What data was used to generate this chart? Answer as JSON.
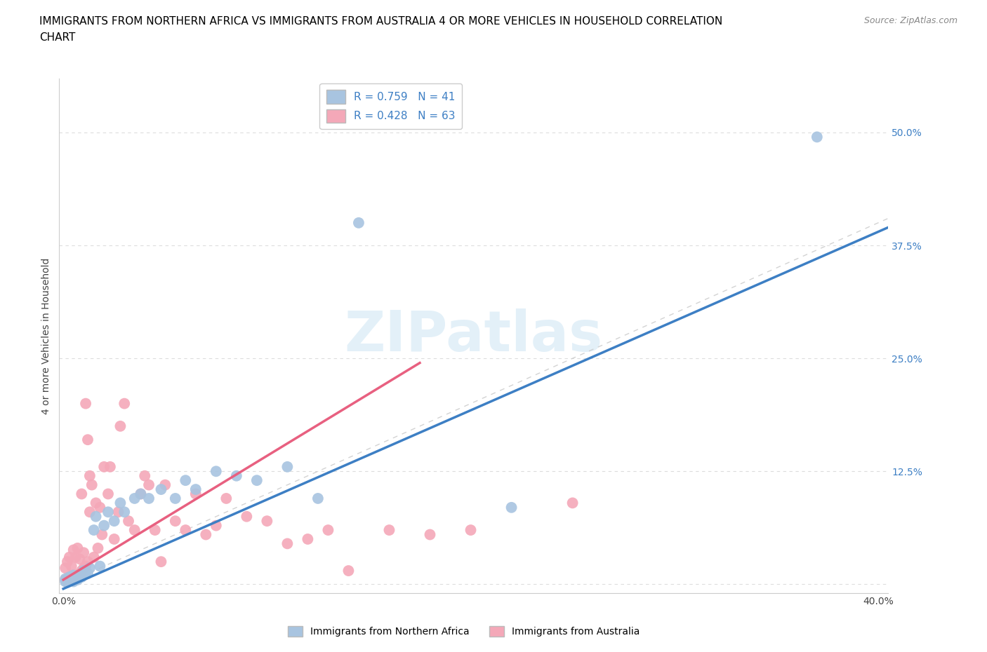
{
  "title_line1": "IMMIGRANTS FROM NORTHERN AFRICA VS IMMIGRANTS FROM AUSTRALIA 4 OR MORE VEHICLES IN HOUSEHOLD CORRELATION",
  "title_line2": "CHART",
  "source": "Source: ZipAtlas.com",
  "ylabel": "4 or more Vehicles in Household",
  "xlim": [
    -0.002,
    0.405
  ],
  "ylim": [
    -0.01,
    0.56
  ],
  "xticks": [
    0.0,
    0.05,
    0.1,
    0.15,
    0.2,
    0.25,
    0.3,
    0.35,
    0.4
  ],
  "xticklabels": [
    "0.0%",
    "",
    "",
    "",
    "",
    "",
    "",
    "",
    "40.0%"
  ],
  "yticks": [
    0.0,
    0.125,
    0.25,
    0.375,
    0.5
  ],
  "yticklabels": [
    "",
    "12.5%",
    "25.0%",
    "37.5%",
    "50.0%"
  ],
  "R_blue": 0.759,
  "N_blue": 41,
  "R_pink": 0.428,
  "N_pink": 63,
  "blue_color": "#a8c4e0",
  "pink_color": "#f4a8b8",
  "blue_line_color": "#3d7fc4",
  "pink_line_color": "#e86080",
  "diag_color": "#c8c8c8",
  "watermark": "ZIPatlas",
  "blue_scatter_x": [
    0.001,
    0.001,
    0.002,
    0.002,
    0.003,
    0.003,
    0.004,
    0.005,
    0.005,
    0.006,
    0.007,
    0.008,
    0.009,
    0.01,
    0.01,
    0.011,
    0.012,
    0.013,
    0.015,
    0.016,
    0.018,
    0.02,
    0.022,
    0.025,
    0.028,
    0.03,
    0.035,
    0.038,
    0.042,
    0.048,
    0.055,
    0.06,
    0.065,
    0.075,
    0.085,
    0.095,
    0.11,
    0.125,
    0.145,
    0.22,
    0.37
  ],
  "blue_scatter_y": [
    0.003,
    0.006,
    0.002,
    0.005,
    0.004,
    0.008,
    0.004,
    0.003,
    0.01,
    0.006,
    0.005,
    0.01,
    0.008,
    0.01,
    0.015,
    0.013,
    0.012,
    0.018,
    0.06,
    0.075,
    0.02,
    0.065,
    0.08,
    0.07,
    0.09,
    0.08,
    0.095,
    0.1,
    0.095,
    0.105,
    0.095,
    0.115,
    0.105,
    0.125,
    0.12,
    0.115,
    0.13,
    0.095,
    0.4,
    0.085,
    0.495
  ],
  "pink_scatter_x": [
    0.001,
    0.001,
    0.002,
    0.002,
    0.003,
    0.003,
    0.004,
    0.004,
    0.005,
    0.005,
    0.006,
    0.006,
    0.007,
    0.007,
    0.008,
    0.008,
    0.009,
    0.009,
    0.01,
    0.01,
    0.011,
    0.011,
    0.012,
    0.012,
    0.013,
    0.013,
    0.014,
    0.015,
    0.016,
    0.017,
    0.018,
    0.019,
    0.02,
    0.022,
    0.023,
    0.025,
    0.027,
    0.028,
    0.03,
    0.032,
    0.035,
    0.038,
    0.04,
    0.042,
    0.045,
    0.048,
    0.05,
    0.055,
    0.06,
    0.065,
    0.07,
    0.075,
    0.08,
    0.09,
    0.1,
    0.11,
    0.12,
    0.13,
    0.14,
    0.16,
    0.18,
    0.2,
    0.25
  ],
  "pink_scatter_y": [
    0.005,
    0.018,
    0.003,
    0.025,
    0.008,
    0.03,
    0.005,
    0.02,
    0.01,
    0.038,
    0.008,
    0.03,
    0.01,
    0.04,
    0.012,
    0.028,
    0.015,
    0.1,
    0.018,
    0.035,
    0.02,
    0.2,
    0.025,
    0.16,
    0.08,
    0.12,
    0.11,
    0.03,
    0.09,
    0.04,
    0.085,
    0.055,
    0.13,
    0.1,
    0.13,
    0.05,
    0.08,
    0.175,
    0.2,
    0.07,
    0.06,
    0.1,
    0.12,
    0.11,
    0.06,
    0.025,
    0.11,
    0.07,
    0.06,
    0.1,
    0.055,
    0.065,
    0.095,
    0.075,
    0.07,
    0.045,
    0.05,
    0.06,
    0.015,
    0.06,
    0.055,
    0.06,
    0.09
  ],
  "blue_line_x0": 0.0,
  "blue_line_y0": -0.005,
  "blue_line_x1": 0.405,
  "blue_line_y1": 0.395,
  "pink_line_x0": 0.0,
  "pink_line_y0": 0.005,
  "pink_line_x1": 0.175,
  "pink_line_y1": 0.245,
  "grid_color": "#dddddd",
  "title_fontsize": 11,
  "axis_label_fontsize": 10,
  "tick_fontsize": 10,
  "legend_fontsize": 11
}
